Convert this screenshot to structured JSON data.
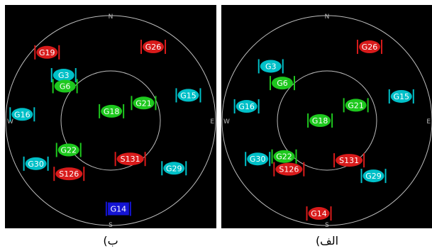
{
  "colors": {
    "background": "#000000",
    "ring": "#bdbdbd",
    "label_text": "#ffffff",
    "gps_unused": "#00c0c8",
    "gps_used": "#1ec81e",
    "sbas": "#d81b1b",
    "blue": "#1414d2"
  },
  "compass": {
    "north": "N",
    "south": "S",
    "east": "E",
    "west": "W"
  },
  "panels": [
    {
      "id": "left",
      "caption": "ب)",
      "satellites": [
        {
          "label": "G26",
          "elev_deg": 17,
          "azim_deg": 30,
          "color_key": "sbas"
        },
        {
          "label": "G19",
          "elev_deg": 10,
          "azim_deg": 317,
          "color_key": "sbas"
        },
        {
          "label": "G3",
          "elev_deg": 34,
          "azim_deg": 314,
          "color_key": "gps_unused"
        },
        {
          "label": "G6",
          "elev_deg": 41,
          "azim_deg": 307,
          "color_key": "gps_used"
        },
        {
          "label": "G15",
          "elev_deg": 20,
          "azim_deg": 72,
          "color_key": "gps_unused"
        },
        {
          "label": "G21",
          "elev_deg": 58,
          "azim_deg": 62,
          "color_key": "gps_used"
        },
        {
          "label": "G18",
          "elev_deg": 82,
          "azim_deg": 5,
          "color_key": "gps_used"
        },
        {
          "label": "G16",
          "elev_deg": 14,
          "azim_deg": 274,
          "color_key": "gps_unused"
        },
        {
          "label": "G22",
          "elev_deg": 46,
          "azim_deg": 235,
          "color_key": "gps_used"
        },
        {
          "label": "G30",
          "elev_deg": 16,
          "azim_deg": 240,
          "color_key": "gps_unused"
        },
        {
          "label": "S126",
          "elev_deg": 32,
          "azim_deg": 218,
          "color_key": "sbas"
        },
        {
          "label": "S131",
          "elev_deg": 53,
          "azim_deg": 153,
          "color_key": "sbas"
        },
        {
          "label": "G29",
          "elev_deg": 22,
          "azim_deg": 127,
          "color_key": "gps_unused"
        },
        {
          "label": "G14",
          "elev_deg": 14,
          "azim_deg": 175,
          "color_key": "blue"
        }
      ]
    },
    {
      "id": "right",
      "caption": "الف)",
      "satellites": [
        {
          "label": "G26",
          "elev_deg": 17,
          "azim_deg": 30,
          "color_key": "sbas"
        },
        {
          "label": "G3",
          "elev_deg": 23,
          "azim_deg": 314,
          "color_key": "gps_unused"
        },
        {
          "label": "G6",
          "elev_deg": 40,
          "azim_deg": 310,
          "color_key": "gps_used"
        },
        {
          "label": "G15",
          "elev_deg": 23,
          "azim_deg": 72,
          "color_key": "gps_unused"
        },
        {
          "label": "G21",
          "elev_deg": 62,
          "azim_deg": 62,
          "color_key": "gps_used"
        },
        {
          "label": "G18",
          "elev_deg": 84,
          "azim_deg": 270,
          "color_key": "gps_used"
        },
        {
          "label": "G16",
          "elev_deg": 20,
          "azim_deg": 280,
          "color_key": "gps_unused"
        },
        {
          "label": "G22",
          "elev_deg": 42,
          "azim_deg": 230,
          "color_key": "gps_used"
        },
        {
          "label": "G30",
          "elev_deg": 22,
          "azim_deg": 241,
          "color_key": "gps_unused"
        },
        {
          "label": "S126",
          "elev_deg": 37,
          "azim_deg": 218,
          "color_key": "sbas"
        },
        {
          "label": "S131",
          "elev_deg": 51,
          "azim_deg": 151,
          "color_key": "sbas"
        },
        {
          "label": "G29",
          "elev_deg": 28,
          "azim_deg": 140,
          "color_key": "gps_unused"
        },
        {
          "label": "G14",
          "elev_deg": 10,
          "azim_deg": 185,
          "color_key": "sbas"
        }
      ]
    }
  ]
}
